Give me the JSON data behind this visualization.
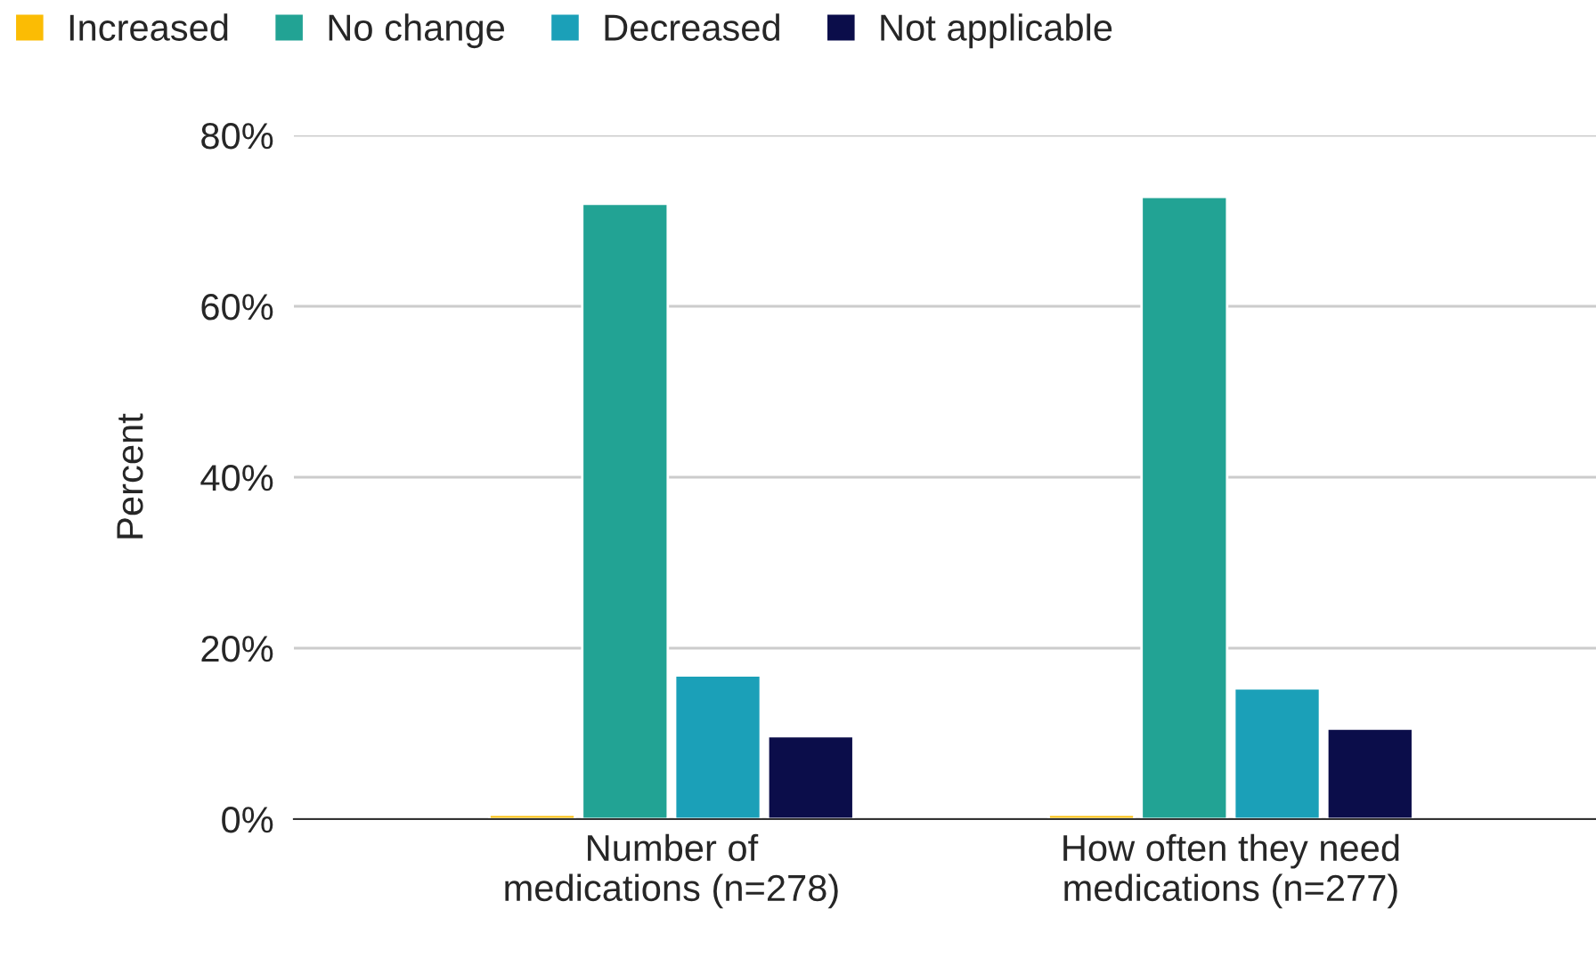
{
  "chart_data": {
    "type": "bar",
    "ylabel": "Percent",
    "categories": [
      "Number of\nmedications (n=278)",
      "How often they need\nmedications (n=277)"
    ],
    "series": [
      {
        "name": "Increased",
        "color": "#fbbc04",
        "values": [
          0.5,
          0.5
        ]
      },
      {
        "name": "No change",
        "color": "#22a394",
        "values": [
          72.0,
          72.8
        ]
      },
      {
        "name": "Decreased",
        "color": "#1ba0b8",
        "values": [
          16.8,
          15.3
        ]
      },
      {
        "name": "Not applicable",
        "color": "#0b0d4a",
        "values": [
          9.7,
          10.6
        ]
      }
    ],
    "ylim": [
      0,
      80
    ],
    "yticks": [
      {
        "value": 0,
        "label": "0%"
      },
      {
        "value": 20,
        "label": "20%"
      },
      {
        "value": 40,
        "label": "40%"
      },
      {
        "value": 60,
        "label": "60%"
      },
      {
        "value": 80,
        "label": "80%"
      }
    ],
    "grid": "y",
    "legend": "top"
  }
}
